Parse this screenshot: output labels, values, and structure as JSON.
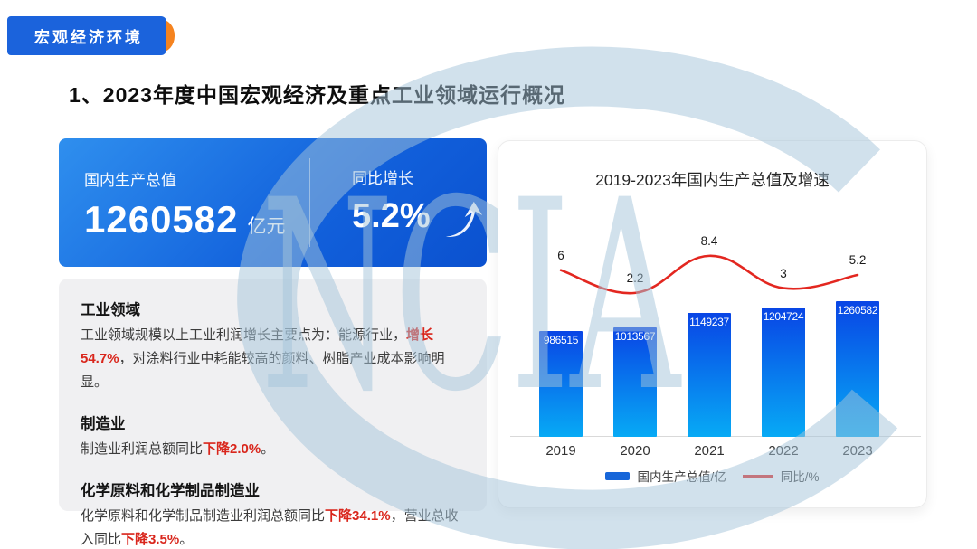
{
  "badge": {
    "label": "宏观经济环境"
  },
  "title": "1、2023年度中国宏观经济及重点工业领域运行概况",
  "gdp_card": {
    "label": "国内生产总值",
    "value": "1260582",
    "unit": "亿元",
    "growth_label": "同比增长",
    "growth_value": "5.2%",
    "growth_icon": "up-arrow"
  },
  "notes": {
    "sections": [
      {
        "heading": "工业领域",
        "segments": [
          {
            "text": "工业领域规模以上工业利润增长主要点为：能源行业，",
            "highlight": false
          },
          {
            "text": "增长54.7%",
            "highlight": true
          },
          {
            "text": "，对涂料行业中耗能较高的颜料、树脂产业成本影响明显。",
            "highlight": false
          }
        ]
      },
      {
        "heading": "制造业",
        "segments": [
          {
            "text": "制造业利润总额同比",
            "highlight": false
          },
          {
            "text": "下降2.0%",
            "highlight": true
          },
          {
            "text": "。",
            "highlight": false
          }
        ]
      },
      {
        "heading": "化学原料和化学制品制造业",
        "segments": [
          {
            "text": "化学原料和化学制品制造业利润总额同比",
            "highlight": false
          },
          {
            "text": "下降34.1%",
            "highlight": true
          },
          {
            "text": "，营业总收入同比",
            "highlight": false
          },
          {
            "text": "下降3.5%",
            "highlight": true
          },
          {
            "text": "。",
            "highlight": false
          }
        ]
      }
    ]
  },
  "chart_data": {
    "type": "bar",
    "title": "2019-2023年国内生产总值及增速",
    "categories": [
      "2019",
      "2020",
      "2021",
      "2022",
      "2023"
    ],
    "series": [
      {
        "name": "国内生产总值/亿",
        "type": "bar",
        "values": [
          986515,
          1013567,
          1149237,
          1204724,
          1260582
        ],
        "color_top": "#0945e5",
        "color_bottom": "#07aaf5",
        "legend_color": "#1766d9"
      },
      {
        "name": "同比/%",
        "type": "line",
        "values": [
          6,
          2.2,
          8.4,
          3,
          5.2
        ],
        "color": "#e32720"
      }
    ],
    "legend_position": "bottom",
    "grid": false,
    "value_labels": "bars labeled inside top, line labeled above points"
  },
  "watermark": {
    "text": "NCIA",
    "color": "#a3c4da"
  },
  "colors": {
    "badge_blue": "#1b63dc",
    "badge_orange": "#f5831f",
    "card_blue_start": "#2f8fee",
    "card_blue_end": "#0b51cf",
    "note_bg": "#f0f0f2",
    "highlight_red": "#d9261c",
    "line_red": "#e32720",
    "axis_gray": "#d9d9d9",
    "watermark_blue": "#a3c4da"
  }
}
